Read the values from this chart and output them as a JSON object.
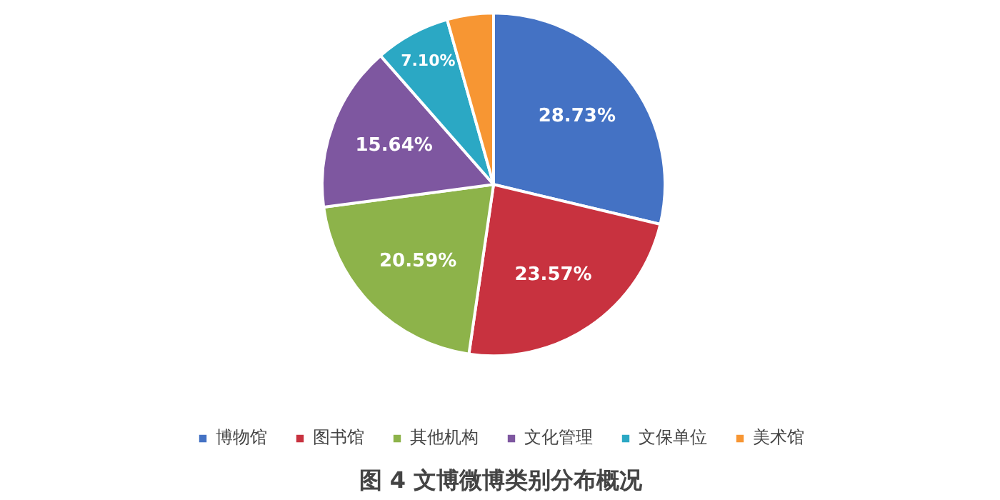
{
  "chart_data": {
    "type": "pie",
    "title": "图 4 文博微博类别分布概况",
    "categories": [
      "博物馆",
      "图书馆",
      "其他机构",
      "文化管理",
      "文保单位",
      "美术馆"
    ],
    "values": [
      28.73,
      23.57,
      20.59,
      15.64,
      7.1,
      4.37
    ],
    "value_labels": [
      "28.73%",
      "23.57%",
      "20.59%",
      "15.64%",
      "7.10%",
      null
    ],
    "colors": [
      "#4472c4",
      "#c8323f",
      "#8db34a",
      "#7e57a0",
      "#2ba8c4",
      "#f79633"
    ],
    "legend": "bottom"
  }
}
